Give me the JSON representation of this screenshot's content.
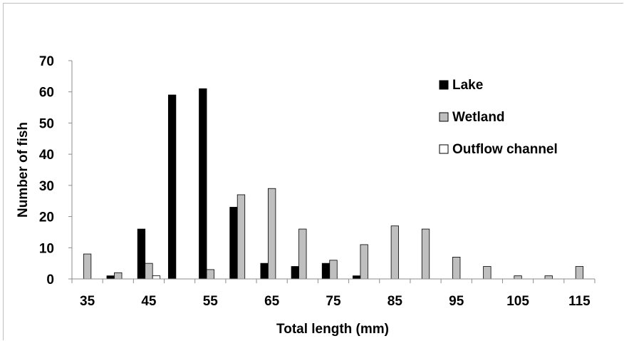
{
  "chart_data": {
    "type": "bar",
    "title": "",
    "xlabel": "Total length (mm)",
    "ylabel": "Number of fish",
    "ylim": [
      0,
      70
    ],
    "yticks": [
      "0",
      "10",
      "20",
      "30",
      "40",
      "50",
      "60",
      "70"
    ],
    "categories": [
      "35",
      "40",
      "45",
      "50",
      "55",
      "60",
      "65",
      "70",
      "75",
      "80",
      "85",
      "90",
      "95",
      "100",
      "105",
      "110",
      "115"
    ],
    "xtick_labels": [
      "35",
      "45",
      "55",
      "65",
      "75",
      "85",
      "95",
      "105",
      "115"
    ],
    "grid": false,
    "legend_position": "right",
    "series": [
      {
        "name": "Lake",
        "color": "#000000",
        "values": [
          0,
          1,
          16,
          59,
          61,
          23,
          5,
          4,
          5,
          1,
          0,
          0,
          0,
          0,
          0,
          0,
          0
        ]
      },
      {
        "name": "Wetland",
        "color": "#bfbfbf",
        "values": [
          8,
          2,
          5,
          0,
          3,
          27,
          29,
          16,
          6,
          11,
          17,
          16,
          7,
          4,
          1,
          1,
          4
        ]
      },
      {
        "name": "Outflow channel",
        "color": "#ffffff",
        "values": [
          0,
          0,
          1,
          0,
          0,
          0,
          0,
          0,
          0,
          0,
          0,
          0,
          0,
          0,
          0,
          0,
          0
        ]
      }
    ]
  }
}
